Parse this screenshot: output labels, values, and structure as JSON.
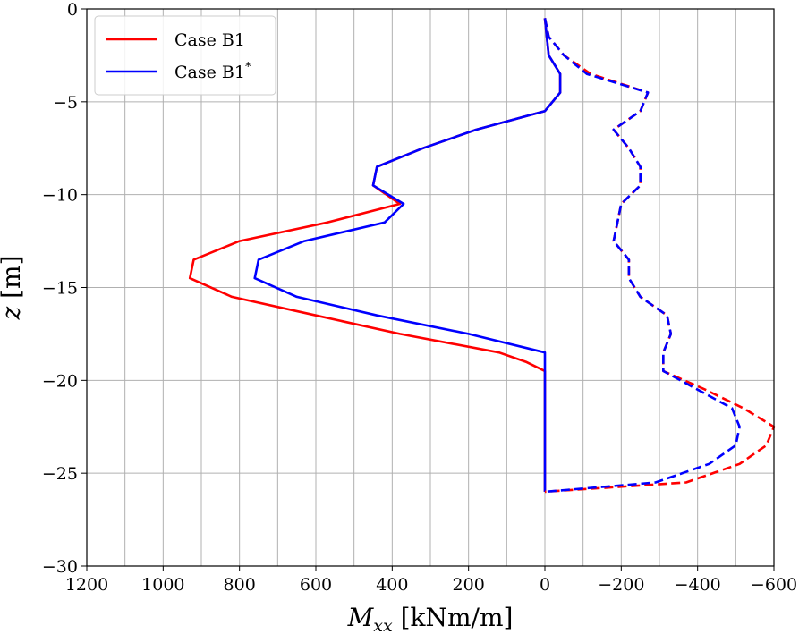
{
  "chart_data": {
    "type": "line",
    "title": "",
    "xlabel_main": "M",
    "xlabel_sub": "xx",
    "xlabel_unit": " [kNm/m]",
    "ylabel_main": "z",
    "ylabel_unit": " [m]",
    "xlim": [
      1200,
      -600
    ],
    "ylim": [
      -30,
      0
    ],
    "xticks": [
      1200,
      1000,
      800,
      600,
      400,
      200,
      0,
      -200,
      -400,
      -600
    ],
    "xtick_labels": [
      "1200",
      "1000",
      "800",
      "600",
      "400",
      "200",
      "0",
      "−200",
      "−400",
      "−600"
    ],
    "yticks": [
      0,
      -5,
      -10,
      -15,
      -20,
      -25,
      -30
    ],
    "ytick_labels": [
      "0",
      "−5",
      "−10",
      "−15",
      "−20",
      "−25",
      "−30"
    ],
    "x_grid_values": [
      1200,
      1100,
      1000,
      900,
      800,
      700,
      600,
      500,
      400,
      300,
      200,
      100,
      0,
      -100,
      -200,
      -300,
      -400,
      -500,
      -600
    ],
    "y_grid_values": [
      0,
      -5,
      -10,
      -15,
      -20,
      -25,
      -30
    ],
    "grid": true,
    "legend": {
      "placement": "top-left",
      "entries": [
        {
          "label": "Case B1",
          "sup": "",
          "color": "#ff0000"
        },
        {
          "label": "Case B1",
          "sup": "*",
          "color": "#0000ff"
        }
      ]
    },
    "series": [
      {
        "color": "#ff0000",
        "linestyle": "solid",
        "points": [
          [
            0,
            -0.5
          ],
          [
            -5,
            -1.5
          ],
          [
            -10,
            -2.5
          ],
          [
            -40,
            -3.5
          ],
          [
            -40,
            -4.5
          ],
          [
            0,
            -5.5
          ],
          [
            180,
            -6.5
          ],
          [
            320,
            -7.5
          ],
          [
            440,
            -8.5
          ],
          [
            450,
            -9.5
          ],
          [
            380,
            -10.5
          ],
          [
            570,
            -11.5
          ],
          [
            800,
            -12.5
          ],
          [
            920,
            -13.5
          ],
          [
            930,
            -14.5
          ],
          [
            820,
            -15.5
          ],
          [
            600,
            -16.5
          ],
          [
            380,
            -17.5
          ],
          [
            120,
            -18.5
          ],
          [
            50,
            -19
          ],
          [
            0,
            -19.5
          ],
          [
            0,
            -20.5
          ],
          [
            0,
            -22
          ],
          [
            0,
            -24
          ],
          [
            0,
            -26
          ]
        ]
      },
      {
        "color": "#0000ff",
        "linestyle": "solid",
        "points": [
          [
            0,
            -0.5
          ],
          [
            -5,
            -1.5
          ],
          [
            -10,
            -2.5
          ],
          [
            -40,
            -3.5
          ],
          [
            -40,
            -4.5
          ],
          [
            0,
            -5.5
          ],
          [
            180,
            -6.5
          ],
          [
            320,
            -7.5
          ],
          [
            440,
            -8.5
          ],
          [
            450,
            -9.5
          ],
          [
            370,
            -10.5
          ],
          [
            420,
            -11.5
          ],
          [
            630,
            -12.5
          ],
          [
            750,
            -13.5
          ],
          [
            760,
            -14.5
          ],
          [
            650,
            -15.5
          ],
          [
            440,
            -16.5
          ],
          [
            200,
            -17.5
          ],
          [
            0,
            -18.5
          ],
          [
            0,
            -19.5
          ],
          [
            0,
            -22
          ],
          [
            0,
            -24
          ],
          [
            0,
            -26
          ]
        ]
      },
      {
        "color": "#ff0000",
        "linestyle": "dashed",
        "points": [
          [
            0,
            -0.5
          ],
          [
            -10,
            -1.5
          ],
          [
            -50,
            -2.5
          ],
          [
            -120,
            -3.5
          ],
          [
            -270,
            -4.5
          ],
          [
            -250,
            -5.5
          ],
          [
            -180,
            -6.5
          ],
          [
            -220,
            -7.5
          ],
          [
            -250,
            -8.5
          ],
          [
            -250,
            -9.5
          ],
          [
            -200,
            -10.5
          ],
          [
            -190,
            -11.5
          ],
          [
            -180,
            -12.5
          ],
          [
            -220,
            -13.5
          ],
          [
            -220,
            -14.5
          ],
          [
            -250,
            -15.5
          ],
          [
            -320,
            -16.5
          ],
          [
            -330,
            -17.5
          ],
          [
            -310,
            -18.5
          ],
          [
            -310,
            -19.5
          ],
          [
            -420,
            -20.5
          ],
          [
            -520,
            -21.5
          ],
          [
            -600,
            -22.5
          ],
          [
            -580,
            -23.5
          ],
          [
            -510,
            -24.5
          ],
          [
            -370,
            -25.5
          ],
          [
            0,
            -26
          ]
        ]
      },
      {
        "color": "#0000ff",
        "linestyle": "dashed",
        "points": [
          [
            0,
            -0.5
          ],
          [
            -10,
            -1.5
          ],
          [
            -50,
            -2.5
          ],
          [
            -110,
            -3.5
          ],
          [
            -270,
            -4.5
          ],
          [
            -250,
            -5.5
          ],
          [
            -180,
            -6.5
          ],
          [
            -220,
            -7.5
          ],
          [
            -250,
            -8.5
          ],
          [
            -250,
            -9.5
          ],
          [
            -200,
            -10.5
          ],
          [
            -190,
            -11.5
          ],
          [
            -180,
            -12.5
          ],
          [
            -220,
            -13.5
          ],
          [
            -220,
            -14.5
          ],
          [
            -250,
            -15.5
          ],
          [
            -320,
            -16.5
          ],
          [
            -330,
            -17.5
          ],
          [
            -310,
            -18.5
          ],
          [
            -310,
            -19.5
          ],
          [
            -400,
            -20.5
          ],
          [
            -490,
            -21.5
          ],
          [
            -510,
            -22.5
          ],
          [
            -500,
            -23.5
          ],
          [
            -430,
            -24.5
          ],
          [
            -290,
            -25.5
          ],
          [
            0,
            -26
          ]
        ]
      }
    ]
  }
}
